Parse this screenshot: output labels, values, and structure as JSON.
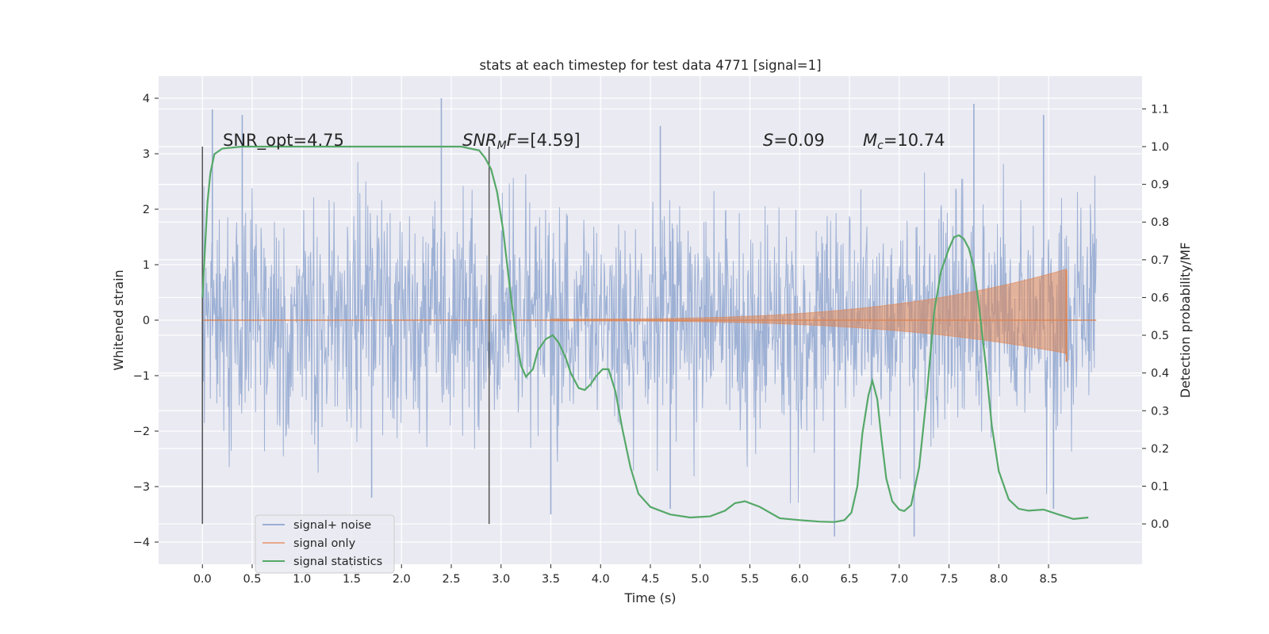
{
  "chart_data": {
    "type": "line",
    "title": "stats at each timestep for test data 4771 [signal=1]",
    "xlabel": "Time (s)",
    "ylabel": "Whitened strain",
    "y2label": "Detection probability/MF",
    "xlim": [
      -0.44,
      9.44
    ],
    "ylim": [
      -4.4,
      4.4
    ],
    "y2lim": [
      -0.107,
      1.187
    ],
    "x_ticks": [
      "0.0",
      "0.5",
      "1.0",
      "1.5",
      "2.0",
      "2.5",
      "3.0",
      "3.5",
      "4.0",
      "4.5",
      "5.0",
      "5.5",
      "6.0",
      "6.5",
      "7.0",
      "7.5",
      "8.0",
      "8.5"
    ],
    "y_ticks": [
      "4",
      "3",
      "2",
      "1",
      "0",
      "−1",
      "−2",
      "−3",
      "−4"
    ],
    "y2_ticks": [
      "1.1",
      "1.0",
      "0.9",
      "0.8",
      "0.7",
      "0.6",
      "0.5",
      "0.4",
      "0.3",
      "0.2",
      "0.1",
      "0.0"
    ],
    "grid": true,
    "legend_position": "lower-left",
    "colors": {
      "background": "#eaeaf2",
      "grid": "#ffffff",
      "noise": "#9aaed3",
      "signal": "#dd8452",
      "stats": "#55a868",
      "marker": "#555555"
    },
    "annotations": {
      "snr_opt": "SNR_opt=4.75",
      "snr_mf_label": "SNR",
      "snr_mf_sub": "M",
      "snr_mf_tail": "F",
      "snr_mf_value": "=[4.59]",
      "s_label": "S",
      "s_value": "=0.09",
      "mc_label": "M",
      "mc_sub": "c",
      "mc_value": "=10.74"
    },
    "vertical_markers": [
      0.0,
      2.88
    ],
    "series": [
      {
        "name": "signal+ noise",
        "axis": "left",
        "x_range": [
          0.0,
          8.98
        ],
        "noise_std": 1.0,
        "peak_high": [
          [
            0.1,
            3.8
          ],
          [
            0.4,
            3.7
          ],
          [
            2.4,
            4.0
          ],
          [
            4.6,
            3.5
          ],
          [
            7.75,
            3.9
          ],
          [
            8.45,
            3.7
          ]
        ],
        "peak_low": [
          [
            0.0,
            -3.65
          ],
          [
            1.7,
            -3.2
          ],
          [
            3.5,
            -3.5
          ],
          [
            4.7,
            -3.4
          ],
          [
            6.35,
            -3.9
          ],
          [
            7.15,
            -3.9
          ],
          [
            8.55,
            -3.4
          ]
        ]
      },
      {
        "name": "signal only",
        "axis": "left",
        "chirp_start": 3.5,
        "chirp_end": 8.68,
        "peak_amplitude": 0.9
      },
      {
        "name": "signal statistics",
        "axis": "right",
        "x": [
          0.0,
          0.05,
          0.08,
          0.12,
          0.2,
          0.4,
          1.0,
          2.0,
          2.6,
          2.78,
          2.84,
          2.9,
          2.96,
          3.02,
          3.1,
          3.15,
          3.2,
          3.25,
          3.32,
          3.37,
          3.45,
          3.52,
          3.58,
          3.65,
          3.7,
          3.78,
          3.84,
          3.9,
          3.95,
          4.02,
          4.08,
          4.15,
          4.22,
          4.3,
          4.38,
          4.5,
          4.7,
          4.9,
          5.1,
          5.25,
          5.35,
          5.45,
          5.6,
          5.8,
          6.0,
          6.2,
          6.35,
          6.45,
          6.52,
          6.58,
          6.63,
          6.69,
          6.73,
          6.78,
          6.82,
          6.87,
          6.93,
          7.0,
          7.05,
          7.12,
          7.2,
          7.28,
          7.35,
          7.42,
          7.5,
          7.55,
          7.6,
          7.65,
          7.7,
          7.75,
          7.8,
          7.87,
          7.93,
          8.0,
          8.1,
          8.2,
          8.3,
          8.45,
          8.6,
          8.75,
          8.9
        ],
        "y": [
          0.6,
          0.85,
          0.93,
          0.98,
          0.995,
          1.0,
          1.0,
          1.0,
          1.0,
          0.99,
          0.97,
          0.94,
          0.88,
          0.78,
          0.6,
          0.5,
          0.42,
          0.39,
          0.41,
          0.46,
          0.49,
          0.5,
          0.48,
          0.44,
          0.4,
          0.36,
          0.355,
          0.37,
          0.39,
          0.41,
          0.41,
          0.35,
          0.25,
          0.15,
          0.08,
          0.045,
          0.025,
          0.017,
          0.02,
          0.035,
          0.055,
          0.06,
          0.045,
          0.015,
          0.01,
          0.006,
          0.005,
          0.01,
          0.03,
          0.1,
          0.24,
          0.34,
          0.38,
          0.33,
          0.23,
          0.12,
          0.06,
          0.038,
          0.034,
          0.05,
          0.15,
          0.35,
          0.56,
          0.67,
          0.73,
          0.76,
          0.765,
          0.755,
          0.73,
          0.68,
          0.58,
          0.42,
          0.26,
          0.14,
          0.065,
          0.04,
          0.035,
          0.038,
          0.025,
          0.013,
          0.017
        ]
      }
    ]
  },
  "legend": {
    "items": [
      {
        "label": "signal+ noise",
        "color": "#9aaed3"
      },
      {
        "label": "signal only",
        "color": "#e7a88a"
      },
      {
        "label": "signal statistics",
        "color": "#55a868"
      }
    ]
  }
}
